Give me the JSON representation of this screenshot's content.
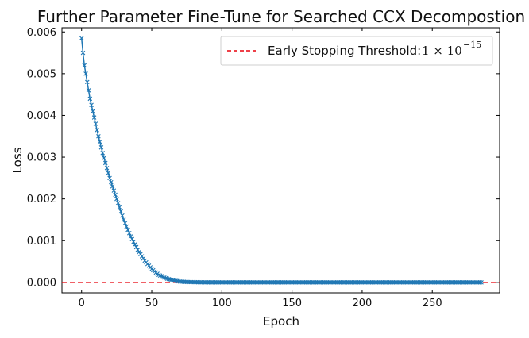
{
  "chart_data": {
    "type": "line",
    "title": "Further Parameter Fine-Tune for Searched CCX Decompostion",
    "xlabel": "Epoch",
    "ylabel": "Loss",
    "xlim": [
      -14,
      298
    ],
    "ylim": [
      -0.00025,
      0.0061
    ],
    "x_ticks": [
      0,
      50,
      100,
      150,
      200,
      250
    ],
    "y_ticks": [
      0.0,
      0.001,
      0.002,
      0.003,
      0.004,
      0.005,
      0.006
    ],
    "y_tick_labels": [
      "0.000",
      "0.001",
      "0.002",
      "0.003",
      "0.004",
      "0.005",
      "0.006"
    ],
    "grid": false,
    "legend_position": "top-right",
    "series": [
      {
        "name": "",
        "color": "#1f77b4",
        "marker": "x",
        "x_start": 0,
        "x_end": 285,
        "x": [
          0,
          1,
          2,
          3,
          4,
          5,
          6,
          8,
          10,
          12,
          15,
          20,
          25,
          30,
          35,
          40,
          45,
          50,
          55,
          60,
          65,
          70,
          75,
          80,
          85,
          90,
          100,
          150,
          200,
          250,
          285
        ],
        "y": [
          0.00585,
          0.0055,
          0.0052,
          0.005,
          0.0048,
          0.0046,
          0.0044,
          0.0041,
          0.0038,
          0.0035,
          0.0031,
          0.0025,
          0.002,
          0.0015,
          0.0011,
          0.00078,
          0.00052,
          0.00032,
          0.00018,
          0.0001,
          5e-05,
          2e-05,
          1e-05,
          5e-06,
          2e-06,
          1e-06,
          4e-07,
          0,
          0,
          0,
          0
        ]
      }
    ],
    "threshold": {
      "label_text": "Early Stopping Threshold:",
      "label_math_prefix": "1 × 10",
      "label_math_exponent": "−15",
      "value": 1e-15,
      "color": "#e8000b",
      "style": "dashed"
    },
    "colors": {
      "series": "#1f77b4",
      "threshold": "#e8000b"
    }
  }
}
